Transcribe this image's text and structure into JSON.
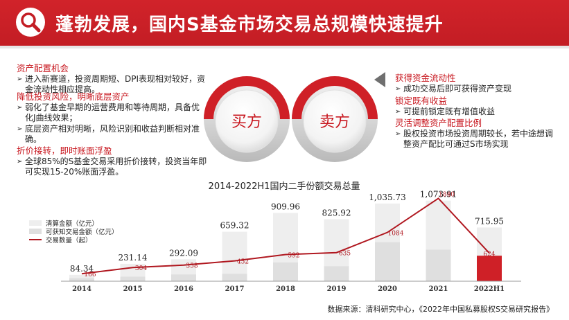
{
  "header": {
    "title": "蓬勃发展，国内S基金市场交易总规模快速提升",
    "icon": "search-icon"
  },
  "buyer": {
    "circle_label": "买方",
    "blocks": [
      {
        "heading": "资产配置机会",
        "items": [
          "进入新赛道，投资周期短、DPI表现相对较好，资金流动性相应提高。"
        ]
      },
      {
        "heading": "降低投资风险，明晰底层资产",
        "items": [
          "弱化了基金早期的运营费用和等待周期，具备优化J曲线效果；",
          "底层资产相对明晰，风险识别和收益判断相对准确。"
        ]
      },
      {
        "heading": "折价接转，即时账面浮盈",
        "items": [
          "全球85%的S基金交易采用折价接转，投资当年即可实现15-20%账面浮盈。"
        ]
      }
    ]
  },
  "seller": {
    "circle_label": "卖方",
    "blocks": [
      {
        "heading": "获得资金流动性",
        "items": [
          "成功交易后即可获得资产变现"
        ]
      },
      {
        "heading": "锁定既有收益",
        "items": [
          "可提前锁定既有增值收益"
        ]
      },
      {
        "heading": "灵活调整资产配置比例",
        "items": [
          "股权投资市场投资周期较长，若中途想调整资产配比可通过S市场实现"
        ]
      }
    ]
  },
  "chart_data": {
    "type": "bar",
    "title": "2014-2022H1国内二手份额交易总量",
    "categories": [
      "2014",
      "2015",
      "2016",
      "2017",
      "2018",
      "2019",
      "2020",
      "2021",
      "2022H1"
    ],
    "series": [
      {
        "name": "清算金额（亿元）",
        "values": [
          84.34,
          231.14,
          292.09,
          659.32,
          909.96,
          825.92,
          1035.73,
          1073.91,
          715.95
        ],
        "labels": [
          "84.34",
          "231.14",
          "292.09",
          "659.32",
          "909.96",
          "825.92",
          "1,035.73",
          "1,073.91",
          "715.95"
        ]
      },
      {
        "name": "可获知交易金额（亿元）",
        "values": [
          40,
          60,
          90,
          100,
          250,
          200,
          520,
          420,
          340
        ]
      },
      {
        "name": "交易数量（起）",
        "values": [
          166,
          304,
          358,
          452,
          592,
          635,
          1084,
          1840,
          624
        ]
      }
    ],
    "ylim": [
      0,
      1200
    ],
    "y2lim": [
      0,
      2000
    ],
    "legend_position": "top-left",
    "colors": {
      "bar": "#eeeeee",
      "bar_known": "#dfdfdf",
      "bar_highlight": "#cf2027",
      "line": "#b0171f"
    }
  },
  "source": "数据来源：清科研究中心，《2022年中国私募股权S交易研究报告》"
}
